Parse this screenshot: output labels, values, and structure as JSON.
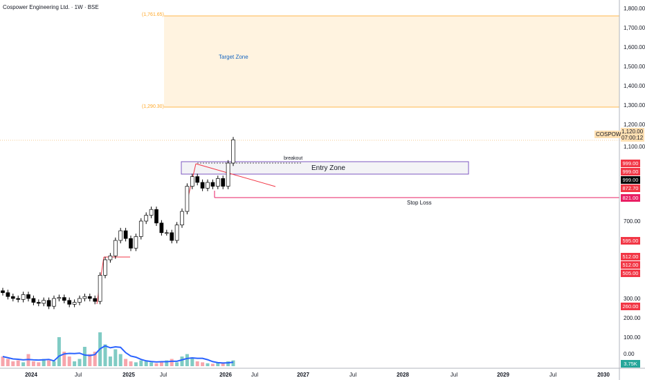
{
  "header": {
    "title": "Cospower Engineering Ltd. · 1W · BSE"
  },
  "annotations": {
    "target_top": "(1,761.65)",
    "target_bottom": "(1,290.30)",
    "target_zone": "Target Zone",
    "entry_zone": "Entry Zone",
    "breakout": "breakout",
    "stop_loss": "Stop Loss"
  },
  "price_tags": {
    "symbol": "COSPOWER",
    "last": "1,120.00",
    "countdown": "07:00:12",
    "volume": "3.75K",
    "levels": [
      "999.00",
      "999.00",
      "999.00",
      "872.70",
      "821.00",
      "595.00",
      "512.00",
      "512.00",
      "505.00",
      "260.00"
    ]
  },
  "colors": {
    "up": "#ffffff",
    "down": "#000000",
    "target": "#fff3e0",
    "stop": "#e91e63",
    "trend": "#f23645",
    "vol_ma": "#2962ff"
  },
  "chart_data": {
    "type": "candlestick",
    "title": "Cospower Engineering Ltd. · 1W · BSE",
    "ylim": [
      0,
      1800
    ],
    "yticks": [
      "1,800.00",
      "1,700.00",
      "1,600.00",
      "1,500.00",
      "1,400.00",
      "1,300.00",
      "1,200.00",
      "1,100.00",
      "700.00",
      "300.00",
      "200.00",
      "100.00",
      "0.00"
    ],
    "ytick_values": [
      1800,
      1700,
      1600,
      1500,
      1400,
      1300,
      1200,
      1100,
      700,
      300,
      200,
      100,
      0
    ],
    "xticks": [
      "2024",
      "Jul",
      "2025",
      "Jul",
      "2026",
      "Jul",
      "2027",
      "Jul",
      "2028",
      "Jul",
      "2029",
      "Jul",
      "2030"
    ],
    "closes": [
      330,
      310,
      300,
      295,
      320,
      300,
      280,
      275,
      290,
      260,
      300,
      305,
      290,
      270,
      280,
      300,
      310,
      300,
      285,
      420,
      500,
      520,
      600,
      650,
      610,
      560,
      620,
      700,
      730,
      760,
      690,
      640,
      640,
      600,
      680,
      750,
      880,
      930,
      900,
      870,
      900,
      880,
      920,
      880,
      1000,
      1120
    ],
    "volumes": [
      20,
      15,
      10,
      12,
      8,
      25,
      10,
      8,
      15,
      12,
      10,
      60,
      30,
      20,
      10,
      15,
      40,
      25,
      30,
      70,
      45,
      20,
      35,
      25,
      15,
      10,
      8,
      12,
      10,
      8,
      6,
      10,
      12,
      15,
      8,
      20,
      25,
      18,
      10,
      8,
      6,
      5,
      8,
      6,
      10,
      12
    ]
  }
}
